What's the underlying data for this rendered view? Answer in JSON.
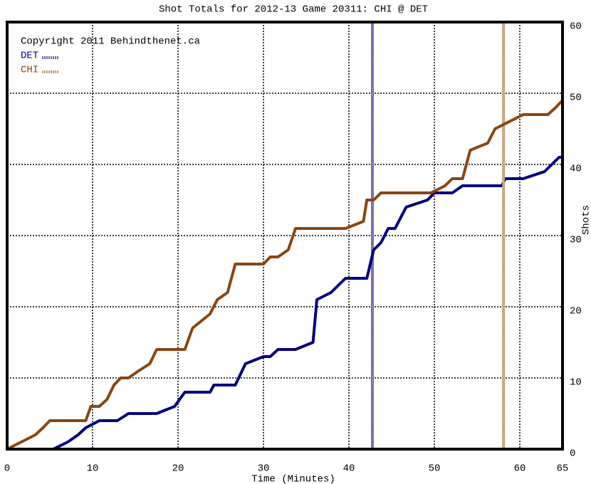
{
  "chart_data": {
    "type": "line",
    "title": "Shot Totals for 2012-13 Game 20311: CHI @ DET",
    "annotation": "Copyright 2011 Behindthenet.ca",
    "x_label": "Time (Minutes)",
    "y_label": "Shots",
    "xlim": [
      0,
      65
    ],
    "xticks": [
      0,
      10,
      20,
      30,
      40,
      50,
      60,
      65
    ],
    "ylim": [
      0,
      60
    ],
    "yticks": [
      0,
      10,
      20,
      30,
      40,
      50,
      60
    ],
    "grid": true,
    "series": [
      {
        "name": "DET",
        "color": "#000080",
        "goal_color": "#7068b0",
        "goals": [
          42.75
        ],
        "x": [
          0,
          5.4,
          7.1,
          8.3,
          9.2,
          10,
          10.8,
          12.9,
          14.2,
          17.5,
          19.6,
          20.8,
          23.75,
          24.2,
          26.7,
          27.9,
          30,
          30.8,
          31.7,
          33.75,
          35.8,
          36.25,
          37.9,
          39.6,
          42.1,
          42.9,
          43.75,
          44.6,
          45.4,
          46.7,
          49.2,
          50,
          52.1,
          53.3,
          57.9,
          58.3,
          60.4,
          62.9,
          63.75,
          64.6,
          65
        ],
        "values": [
          0,
          0,
          1,
          2,
          3,
          3.5,
          4,
          4,
          5,
          5,
          6,
          8,
          8,
          9,
          9,
          12,
          13,
          13,
          14,
          14,
          15,
          21,
          22,
          24,
          24,
          28,
          29,
          31,
          31,
          34,
          35,
          36,
          36,
          37,
          37,
          38,
          38,
          39,
          40,
          41,
          41
        ]
      },
      {
        "name": "CHI",
        "color": "#8b4513",
        "goal_color": "#c0a078",
        "goals": [
          58.1
        ],
        "x": [
          0,
          3.3,
          4.2,
          5,
          9.2,
          9.8,
          10.8,
          11.7,
          12.5,
          13.3,
          14.2,
          15.4,
          16.7,
          17.5,
          20.8,
          21.7,
          23.75,
          24.6,
          25.8,
          26.7,
          30,
          30.8,
          31.7,
          32.9,
          33.75,
          39.6,
          41.7,
          42.1,
          42.9,
          43.75,
          49.6,
          51.25,
          52.1,
          53.3,
          54.2,
          56.25,
          57.1,
          60.4,
          63.3,
          64.2,
          65
        ],
        "values": [
          0,
          2,
          3,
          4,
          4,
          6,
          6,
          7,
          9,
          10,
          10,
          11,
          12,
          14,
          14,
          17,
          19,
          21,
          22,
          26,
          26,
          27,
          27,
          28,
          31,
          31,
          32,
          35,
          35,
          36,
          36,
          37,
          38,
          38,
          42,
          43,
          45,
          47,
          47,
          48,
          49
        ]
      }
    ]
  }
}
